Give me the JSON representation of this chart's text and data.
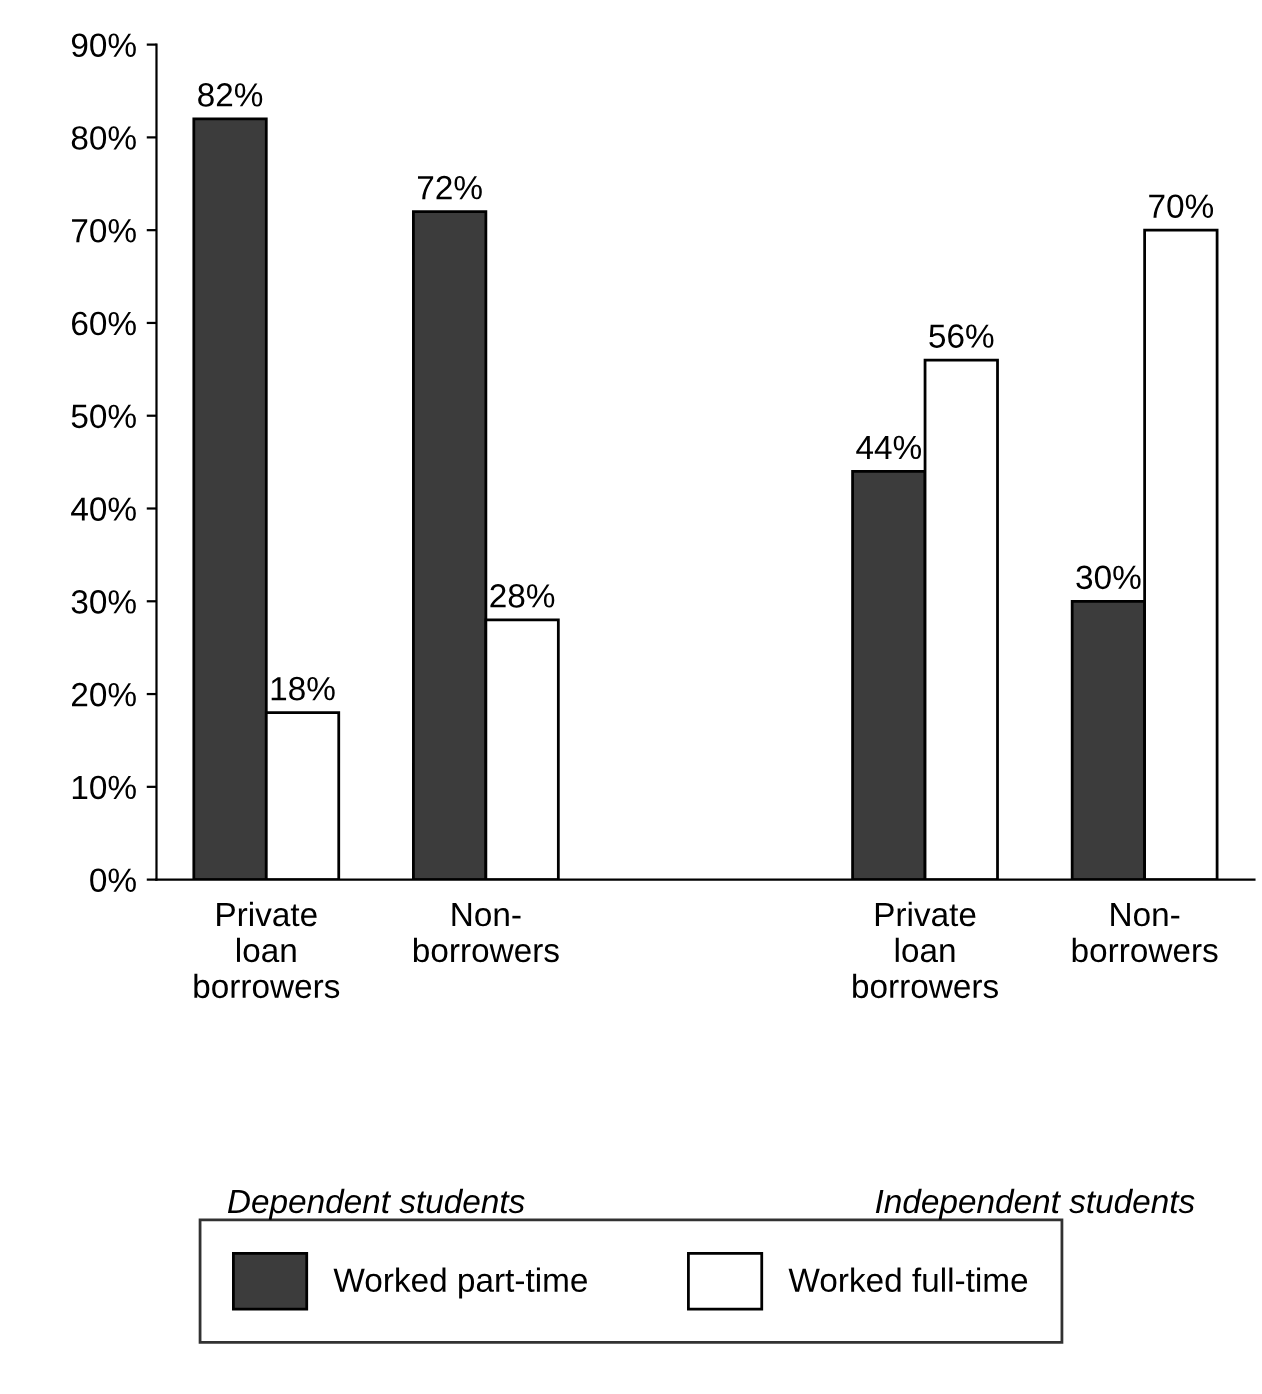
{
  "chart_data": {
    "type": "bar",
    "categories": [
      "Private\nloan\nborrowers",
      "Non-\nborrowers",
      null,
      "Private\nloan\nborrowers",
      "Non-\nborrowers"
    ],
    "series": [
      {
        "name": "Worked part-time",
        "color": "#3c3c3c",
        "values": [
          82,
          72,
          null,
          44,
          30
        ],
        "value_labels": [
          "82%",
          "72%",
          null,
          "44%",
          "30%"
        ]
      },
      {
        "name": "Worked full-time",
        "color": "#ffffff",
        "values": [
          18,
          28,
          null,
          56,
          70
        ],
        "value_labels": [
          "18%",
          "28%",
          null,
          "56%",
          "70%"
        ]
      }
    ],
    "ylim": [
      0,
      90
    ],
    "yticks": [
      {
        "value": 0,
        "label": "0%"
      },
      {
        "value": 10,
        "label": "10%"
      },
      {
        "value": 20,
        "label": "20%"
      },
      {
        "value": 30,
        "label": "30%"
      },
      {
        "value": 40,
        "label": "40%"
      },
      {
        "value": 50,
        "label": "50%"
      },
      {
        "value": 60,
        "label": "60%"
      },
      {
        "value": 70,
        "label": "70%"
      },
      {
        "value": 80,
        "label": "80%"
      },
      {
        "value": 90,
        "label": "90%"
      }
    ],
    "annotations": [
      "Dependent students",
      "Independent students"
    ],
    "grid": false,
    "legend": "bottom"
  }
}
